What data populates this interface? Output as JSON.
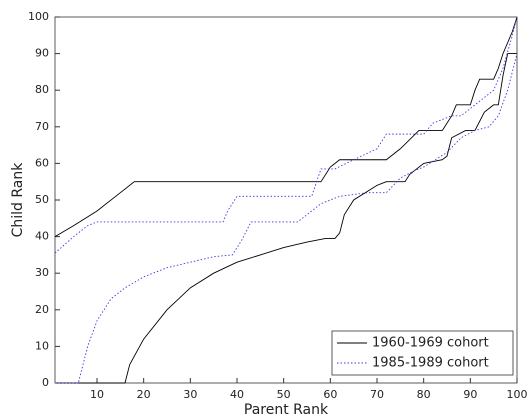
{
  "chart_data": {
    "type": "line",
    "xlabel": "Parent Rank",
    "ylabel": "Child Rank",
    "xlim": [
      1,
      100
    ],
    "ylim": [
      0,
      100
    ],
    "xticks": [
      10,
      20,
      30,
      40,
      50,
      60,
      70,
      80,
      90,
      100
    ],
    "yticks": [
      0,
      10,
      20,
      30,
      40,
      50,
      60,
      70,
      80,
      90,
      100
    ],
    "grid": false,
    "legend": "lower right",
    "series": [
      {
        "name": "1960-1969 cohort",
        "color": "#000000",
        "dash": "solid",
        "curves": [
          {
            "x": [
              1,
              5,
              10,
              15,
              18,
              58,
              60,
              62,
              72,
              75,
              79,
              84,
              86,
              87,
              90,
              91,
              92,
              95,
              96,
              97,
              98,
              99,
              100
            ],
            "values": [
              40,
              43,
              47,
              52,
              55,
              55,
              59,
              61,
              61,
              64,
              69,
              69,
              73,
              76,
              76,
              80,
              83,
              83,
              86,
              90,
              93,
              96,
              100
            ]
          },
          {
            "x": [
              1,
              16,
              17,
              20,
              25,
              30,
              35,
              40,
              45,
              50,
              55,
              59,
              61,
              62,
              63,
              65,
              70,
              72,
              76,
              77,
              80,
              84,
              85,
              86,
              89,
              91,
              93,
              95,
              96,
              97,
              98,
              100
            ],
            "values": [
              0,
              0,
              5,
              12,
              20,
              26,
              30,
              33,
              35,
              37,
              38.5,
              39.5,
              39.5,
              41,
              46,
              50,
              54,
              55,
              55,
              57,
              60,
              61,
              62,
              67,
              69,
              69,
              74,
              76,
              76,
              84,
              90,
              90
            ]
          }
        ]
      },
      {
        "name": "1985-1989 cohort",
        "color": "#3a3adf",
        "dash": "dotted",
        "curves": [
          {
            "x": [
              1,
              5,
              8,
              10,
              37,
              38,
              40,
              43,
              56,
              58,
              61,
              65,
              70,
              72,
              80,
              82,
              86,
              88,
              90,
              93,
              95,
              97,
              99,
              100
            ],
            "values": [
              35.5,
              40,
              43,
              44,
              44,
              47,
              51,
              51,
              51,
              58.5,
              58.5,
              61,
              64,
              68,
              68,
              71,
              73,
              73,
              75,
              78,
              80,
              86,
              95,
              100
            ]
          },
          {
            "x": [
              1,
              6,
              8,
              10,
              13,
              16,
              20,
              25,
              30,
              35,
              39,
              41,
              43,
              50,
              53,
              56,
              58,
              62,
              68,
              72,
              75,
              78,
              80,
              85,
              88,
              91,
              94,
              96,
              98,
              100
            ],
            "values": [
              0,
              0,
              10,
              17,
              23,
              26,
              29,
              31.5,
              33,
              34.5,
              35,
              39,
              44,
              44,
              44,
              47,
              49,
              51,
              52,
              52,
              56,
              58,
              59,
              63,
              67,
              69,
              70,
              73,
              80,
              90
            ]
          }
        ]
      }
    ]
  }
}
